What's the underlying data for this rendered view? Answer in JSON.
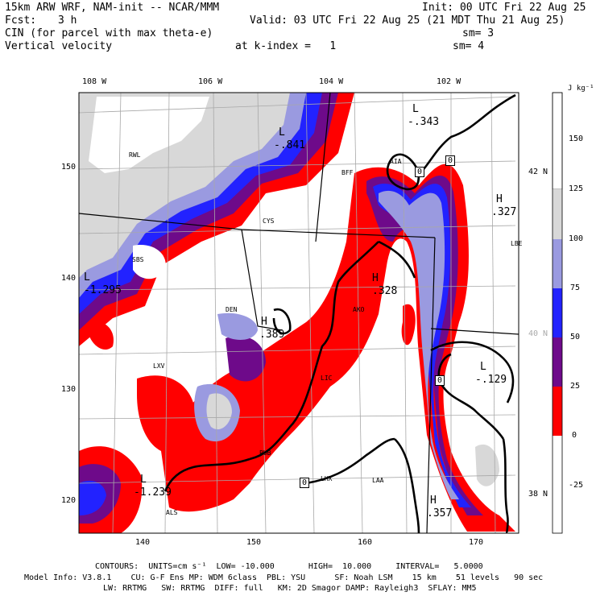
{
  "header": {
    "line1_left": "15km ARW WRF, NAM-init -- NCAR/MMM",
    "line1_right": "Init: 00 UTC Fri 22 Aug 25",
    "line2_left_a": "Fcst:",
    "line2_left_b": "3 h",
    "line2_right": "Valid: 03 UTC Fri 22 Aug 25 (21 MDT Thu 21 Aug 25)",
    "line3_left": "CIN (for parcel with max theta-e)",
    "line3_right": "sm= 3",
    "line4_left": "Vertical velocity",
    "line4_mid": "at k-index =   1",
    "line4_right": "sm= 4"
  },
  "chart_data": {
    "type": "heatmap",
    "colorbar": {
      "unit": "J kg⁻¹",
      "levels": [
        -25,
        0,
        25,
        50,
        75,
        100,
        125,
        150
      ],
      "colors": {
        "neg": "#ffffff",
        "0-25": "#ff0000",
        "25-50": "#6e0a8a",
        "50-75": "#2222ff",
        "75-100": "#9a9ae0",
        "100-125": "#d8d8d8",
        "125+": "#ffffff"
      }
    },
    "x_ticks": [
      "140",
      "150",
      "160",
      "170"
    ],
    "y_ticks": [
      "120",
      "130",
      "140",
      "150"
    ],
    "top_ticks": [
      "108 W",
      "106 W",
      "104 W",
      "102 W"
    ],
    "right_ticks": [
      "42 N",
      "40 N",
      "38 N"
    ],
    "contours": {
      "units": "cm s⁻¹",
      "low": "-10.000",
      "high": "10.000",
      "interval": "5.0000",
      "zero_labels": [
        "0",
        "0",
        "0",
        "0"
      ]
    },
    "highs_lows": [
      {
        "type": "L",
        "value": "-.343"
      },
      {
        "type": "L",
        "value": "-.841"
      },
      {
        "type": "H",
        "value": ".327"
      },
      {
        "type": "L",
        "value": "-1.295"
      },
      {
        "type": "H",
        "value": ".328"
      },
      {
        "type": "H",
        "value": ".389"
      },
      {
        "type": "L",
        "value": "-.129"
      },
      {
        "type": "L",
        "value": "-1.239"
      },
      {
        "type": "H",
        "value": ".357"
      }
    ],
    "stations": [
      "RWL",
      "BFF",
      "AIA",
      "CYS",
      "SBS",
      "LBE",
      "AKO",
      "LXV",
      "LIC",
      "PUB",
      "LHX",
      "LAA",
      "ALS",
      "DEN"
    ]
  },
  "footer": {
    "line1": "CONTOURS:  UNITS=cm s⁻¹  LOW= -10.000       HIGH=  10.000     INTERVAL=   5.0000",
    "line2": "Model Info: V3.8.1    CU: G-F Ens MP: WDM 6class  PBL: YSU      SF: Noah LSM    15 km    51 levels   90 sec",
    "line3": "LW: RRTMG   SW: RRTMG  DIFF: full   KM: 2D Smagor DAMP: Rayleigh3  SFLAY: MM5"
  }
}
